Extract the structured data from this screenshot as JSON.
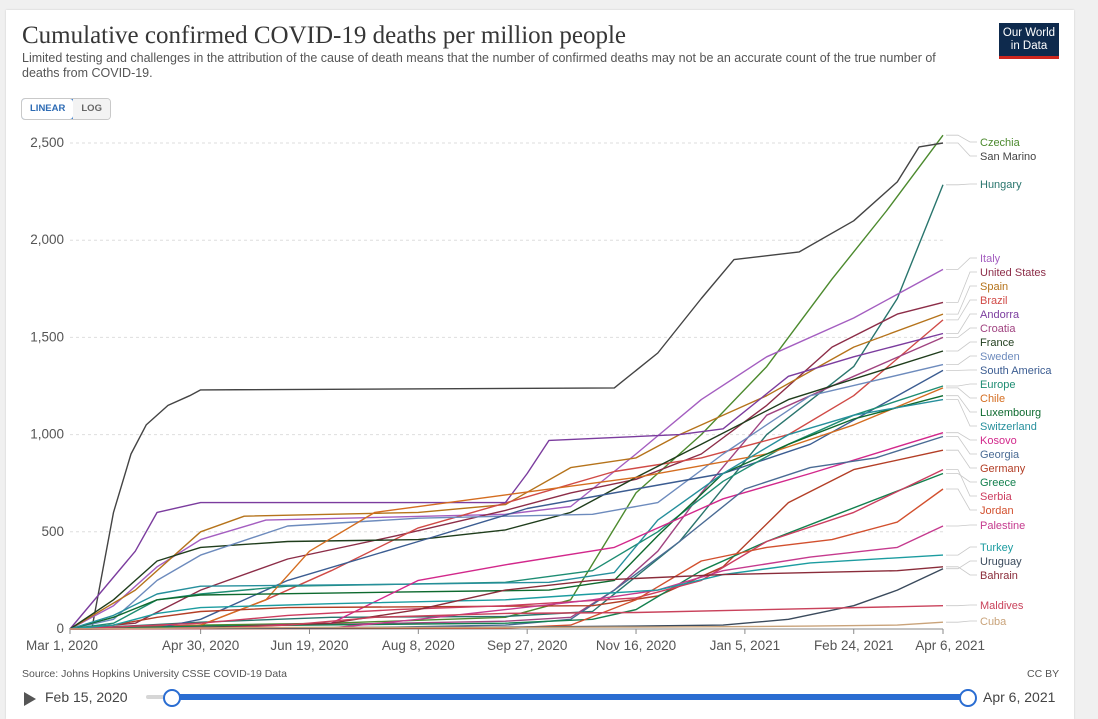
{
  "title": "Cumulative confirmed COVID-19 deaths per million people",
  "subtitle": "Limited testing and challenges in the attribution of the cause of death means that the number of confirmed deaths may not be an accurate count of the true number of deaths from COVID-19.",
  "logo": {
    "line1": "Our World",
    "line2": "in Data"
  },
  "toggle": {
    "linear": "LINEAR",
    "log": "LOG"
  },
  "source": "Source: Johns Hopkins University CSSE COVID-19 Data",
  "license": "CC BY",
  "timeline": {
    "start": "Feb 15, 2020",
    "end": "Apr 6, 2021",
    "start_fraction": 0.0,
    "end_fraction": 1.0
  },
  "chart_data": {
    "type": "line",
    "title": "Cumulative confirmed COVID-19 deaths per million people",
    "ylabel": "",
    "xlabel": "",
    "ylim": [
      0,
      2500
    ],
    "yticks": [
      0,
      500,
      1000,
      1500,
      2000,
      2500
    ],
    "ytick_labels": [
      "0",
      "500",
      "1,000",
      "1,500",
      "2,000",
      "2,500"
    ],
    "xlim_days": [
      0,
      401
    ],
    "xticks": [
      0,
      60,
      110,
      160,
      210,
      260,
      310,
      360,
      401
    ],
    "xtick_labels": [
      "Mar 1, 2020",
      "Apr 30, 2020",
      "Jun 19, 2020",
      "Aug 8, 2020",
      "Sep 27, 2020",
      "Nov 16, 2020",
      "Jan 5, 2021",
      "Feb 24, 2021",
      "Apr 6, 2021"
    ],
    "series": [
      {
        "name": "Czechia",
        "color": "#4c8a2e",
        "x": [
          0,
          60,
          120,
          200,
          230,
          260,
          290,
          320,
          350,
          375,
          401
        ],
        "y": [
          0,
          20,
          30,
          60,
          150,
          700,
          1000,
          1350,
          1800,
          2150,
          2540
        ]
      },
      {
        "name": "San Marino",
        "color": "#444444",
        "x": [
          0,
          10,
          20,
          28,
          35,
          45,
          55,
          60,
          250,
          270,
          290,
          305,
          335,
          360,
          380,
          390,
          401
        ],
        "y": [
          0,
          0,
          600,
          900,
          1050,
          1150,
          1200,
          1230,
          1240,
          1420,
          1700,
          1900,
          1940,
          2100,
          2300,
          2480,
          2500
        ]
      },
      {
        "name": "Hungary",
        "color": "#29756d",
        "x": [
          0,
          60,
          120,
          200,
          240,
          280,
          320,
          360,
          380,
          401
        ],
        "y": [
          0,
          35,
          60,
          65,
          90,
          450,
          1000,
          1350,
          1700,
          2285
        ]
      },
      {
        "name": "Italy",
        "color": "#a45ec0",
        "x": [
          0,
          20,
          40,
          60,
          90,
          200,
          230,
          260,
          290,
          320,
          360,
          401
        ],
        "y": [
          0,
          120,
          320,
          460,
          560,
          590,
          630,
          900,
          1180,
          1400,
          1600,
          1850
        ]
      },
      {
        "name": "United States",
        "color": "#8c2d48",
        "x": [
          0,
          30,
          60,
          100,
          150,
          200,
          230,
          260,
          290,
          320,
          350,
          380,
          401
        ],
        "y": [
          0,
          30,
          200,
          360,
          480,
          610,
          700,
          770,
          900,
          1150,
          1450,
          1620,
          1680
        ]
      },
      {
        "name": "Spain",
        "color": "#b5731b",
        "x": [
          0,
          30,
          60,
          80,
          160,
          200,
          230,
          260,
          280,
          320,
          360,
          401
        ],
        "y": [
          0,
          200,
          500,
          580,
          600,
          640,
          830,
          880,
          1000,
          1200,
          1450,
          1620
        ]
      },
      {
        "name": "Brazil",
        "color": "#d04a46",
        "x": [
          0,
          60,
          90,
          120,
          160,
          210,
          250,
          290,
          330,
          360,
          401
        ],
        "y": [
          0,
          20,
          150,
          300,
          520,
          680,
          810,
          880,
          1000,
          1200,
          1590
        ]
      },
      {
        "name": "Andorra",
        "color": "#7b3c9e",
        "x": [
          0,
          30,
          40,
          60,
          200,
          210,
          220,
          280,
          300,
          330,
          360,
          401
        ],
        "y": [
          0,
          400,
          600,
          650,
          650,
          800,
          970,
          1000,
          1030,
          1300,
          1400,
          1520
        ]
      },
      {
        "name": "Croatia",
        "color": "#a04380",
        "x": [
          0,
          150,
          200,
          230,
          250,
          270,
          290,
          320,
          360,
          401
        ],
        "y": [
          0,
          30,
          40,
          60,
          200,
          400,
          700,
          1100,
          1300,
          1500
        ]
      },
      {
        "name": "France",
        "color": "#1f3d1c",
        "x": [
          0,
          20,
          40,
          60,
          100,
          160,
          200,
          230,
          260,
          290,
          330,
          401
        ],
        "y": [
          0,
          150,
          350,
          420,
          450,
          460,
          510,
          600,
          780,
          950,
          1180,
          1430
        ]
      },
      {
        "name": "Sweden",
        "color": "#6d8bbd",
        "x": [
          0,
          20,
          40,
          60,
          100,
          160,
          200,
          240,
          270,
          300,
          340,
          401
        ],
        "y": [
          0,
          50,
          250,
          380,
          530,
          570,
          580,
          590,
          650,
          900,
          1200,
          1360
        ]
      },
      {
        "name": "South America",
        "color": "#3b5c91",
        "x": [
          0,
          40,
          60,
          100,
          160,
          210,
          260,
          300,
          340,
          401
        ],
        "y": [
          0,
          5,
          50,
          250,
          450,
          620,
          720,
          800,
          950,
          1330
        ]
      },
      {
        "name": "Europe",
        "color": "#1e8d73",
        "x": [
          0,
          20,
          40,
          60,
          100,
          200,
          240,
          270,
          300,
          330,
          360,
          401
        ],
        "y": [
          0,
          30,
          150,
          180,
          220,
          240,
          300,
          500,
          760,
          950,
          1100,
          1250
        ]
      },
      {
        "name": "Chile",
        "color": "#d46d20",
        "x": [
          0,
          40,
          60,
          90,
          110,
          140,
          200,
          260,
          320,
          360,
          401
        ],
        "y": [
          0,
          5,
          20,
          150,
          400,
          600,
          690,
          780,
          900,
          1050,
          1240
        ]
      },
      {
        "name": "Luxembourg",
        "color": "#0e6a2f",
        "x": [
          0,
          20,
          40,
          60,
          150,
          220,
          250,
          270,
          300,
          330,
          360,
          401
        ],
        "y": [
          0,
          60,
          150,
          175,
          190,
          200,
          250,
          480,
          800,
          950,
          1080,
          1200
        ]
      },
      {
        "name": "Switzerland",
        "color": "#268f9c",
        "x": [
          0,
          20,
          40,
          60,
          150,
          220,
          250,
          270,
          300,
          330,
          360,
          401
        ],
        "y": [
          0,
          70,
          180,
          220,
          230,
          240,
          290,
          560,
          800,
          1000,
          1100,
          1180
        ]
      },
      {
        "name": "Kosovo",
        "color": "#d2288b",
        "x": [
          0,
          60,
          120,
          160,
          200,
          250,
          300,
          340,
          401
        ],
        "y": [
          0,
          10,
          30,
          250,
          330,
          420,
          670,
          800,
          1010
        ]
      },
      {
        "name": "Georgia",
        "color": "#4a6b94",
        "x": [
          0,
          150,
          200,
          230,
          250,
          280,
          310,
          340,
          370,
          401
        ],
        "y": [
          0,
          10,
          20,
          50,
          200,
          450,
          720,
          830,
          880,
          990
        ]
      },
      {
        "name": "Germany",
        "color": "#b33e26",
        "x": [
          0,
          20,
          40,
          60,
          100,
          240,
          270,
          300,
          330,
          360,
          401
        ],
        "y": [
          0,
          20,
          60,
          90,
          110,
          120,
          170,
          320,
          650,
          820,
          920
        ]
      },
      {
        "name": "Greece",
        "color": "#13804e",
        "x": [
          0,
          60,
          200,
          240,
          260,
          290,
          320,
          350,
          401
        ],
        "y": [
          0,
          15,
          30,
          50,
          100,
          300,
          450,
          580,
          800
        ]
      },
      {
        "name": "Serbia",
        "color": "#cc3c5f",
        "x": [
          0,
          60,
          100,
          150,
          200,
          260,
          290,
          320,
          360,
          401
        ],
        "y": [
          0,
          30,
          70,
          100,
          120,
          160,
          250,
          450,
          600,
          820
        ]
      },
      {
        "name": "Jordan",
        "color": "#d2502e",
        "x": [
          0,
          200,
          230,
          260,
          290,
          320,
          350,
          380,
          401
        ],
        "y": [
          0,
          5,
          20,
          150,
          350,
          420,
          460,
          550,
          720
        ]
      },
      {
        "name": "Palestine",
        "color": "#c53a8e",
        "x": [
          0,
          120,
          160,
          200,
          240,
          270,
          300,
          340,
          380,
          401
        ],
        "y": [
          0,
          5,
          50,
          100,
          150,
          200,
          300,
          370,
          420,
          530
        ]
      },
      {
        "name": "Turkey",
        "color": "#1c9ca0",
        "x": [
          0,
          20,
          40,
          60,
          120,
          200,
          240,
          270,
          300,
          340,
          401
        ],
        "y": [
          0,
          20,
          80,
          110,
          130,
          150,
          180,
          200,
          280,
          340,
          380
        ]
      },
      {
        "name": "Uruguay",
        "color": "#3a4a5c",
        "x": [
          0,
          120,
          200,
          260,
          300,
          330,
          360,
          380,
          401
        ],
        "y": [
          0,
          5,
          10,
          15,
          20,
          50,
          120,
          200,
          310
        ]
      },
      {
        "name": "Bahrain",
        "color": "#8a2c3a",
        "x": [
          0,
          60,
          120,
          160,
          200,
          240,
          300,
          340,
          380,
          401
        ],
        "y": [
          0,
          5,
          30,
          100,
          200,
          250,
          280,
          290,
          300,
          320
        ]
      },
      {
        "name": "Maldives",
        "color": "#c9425b",
        "x": [
          0,
          60,
          100,
          140,
          200,
          260,
          320,
          401
        ],
        "y": [
          0,
          2,
          20,
          60,
          80,
          85,
          100,
          120
        ]
      },
      {
        "name": "Cuba",
        "color": "#c9a37a",
        "x": [
          0,
          60,
          100,
          200,
          250,
          300,
          340,
          380,
          401
        ],
        "y": [
          0,
          5,
          8,
          8,
          10,
          12,
          15,
          20,
          35
        ]
      }
    ],
    "label_order": [
      "Czechia",
      "San Marino",
      "Hungary",
      "Italy",
      "United States",
      "Spain",
      "Brazil",
      "Andorra",
      "Croatia",
      "France",
      "Sweden",
      "South America",
      "Europe",
      "Chile",
      "Luxembourg",
      "Switzerland",
      "Kosovo",
      "Georgia",
      "Germany",
      "Greece",
      "Serbia",
      "Jordan",
      "Palestine",
      "Turkey",
      "Uruguay",
      "Bahrain",
      "Maldives",
      "Cuba"
    ]
  }
}
